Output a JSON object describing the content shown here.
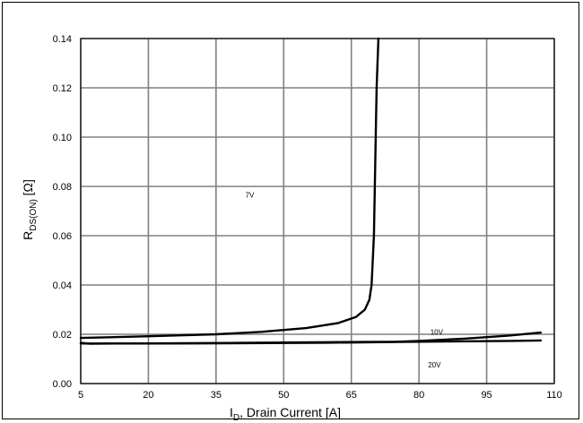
{
  "chart_data": {
    "type": "line",
    "xlabel": {
      "main": "I",
      "sub": "D",
      "rest": ", Drain Current [A]"
    },
    "ylabel": {
      "main": "R",
      "sub": "DS(ON)",
      "rest": " [Ω]"
    },
    "xlim": [
      5,
      110
    ],
    "ylim": [
      0,
      0.14
    ],
    "xticks": [
      5,
      20,
      35,
      50,
      65,
      80,
      95,
      110
    ],
    "xtick_labels": [
      "5",
      "20",
      "35",
      "50",
      "65",
      "80",
      "95",
      "110"
    ],
    "yticks": [
      0,
      0.02,
      0.04,
      0.06,
      0.08,
      0.1,
      0.12,
      0.14
    ],
    "ytick_labels": [
      "0.00",
      "0.02",
      "0.04",
      "0.06",
      "0.08",
      "0.10",
      "0.12",
      "0.14"
    ],
    "grid": true,
    "series": [
      {
        "label_ref": "7V",
        "x": [
          5,
          20,
          35,
          45,
          55,
          62,
          66,
          68,
          69,
          69.5,
          70,
          70.3,
          70.6,
          71
        ],
        "y": [
          0.0185,
          0.0192,
          0.02,
          0.021,
          0.0225,
          0.0245,
          0.027,
          0.03,
          0.034,
          0.04,
          0.06,
          0.09,
          0.12,
          0.14
        ]
      },
      {
        "label_ref": "10V",
        "x": [
          5,
          7,
          20,
          40,
          60,
          75,
          80,
          90,
          100,
          107
        ],
        "y": [
          0.0165,
          0.0162,
          0.0163,
          0.0165,
          0.0168,
          0.017,
          0.0173,
          0.0182,
          0.0195,
          0.0207
        ]
      },
      {
        "label_ref": "20V",
        "x": [
          5,
          7,
          30,
          60,
          80,
          100,
          107
        ],
        "y": [
          0.0163,
          0.0162,
          0.0163,
          0.0166,
          0.017,
          0.0173,
          0.0175
        ]
      }
    ],
    "annotations": [
      {
        "text": "7V",
        "x": 41.5,
        "y": 0.0755
      },
      {
        "text": "10V",
        "x": 82.5,
        "y": 0.0198
      },
      {
        "text": "20V",
        "x": 82.0,
        "y": 0.0065
      }
    ]
  }
}
